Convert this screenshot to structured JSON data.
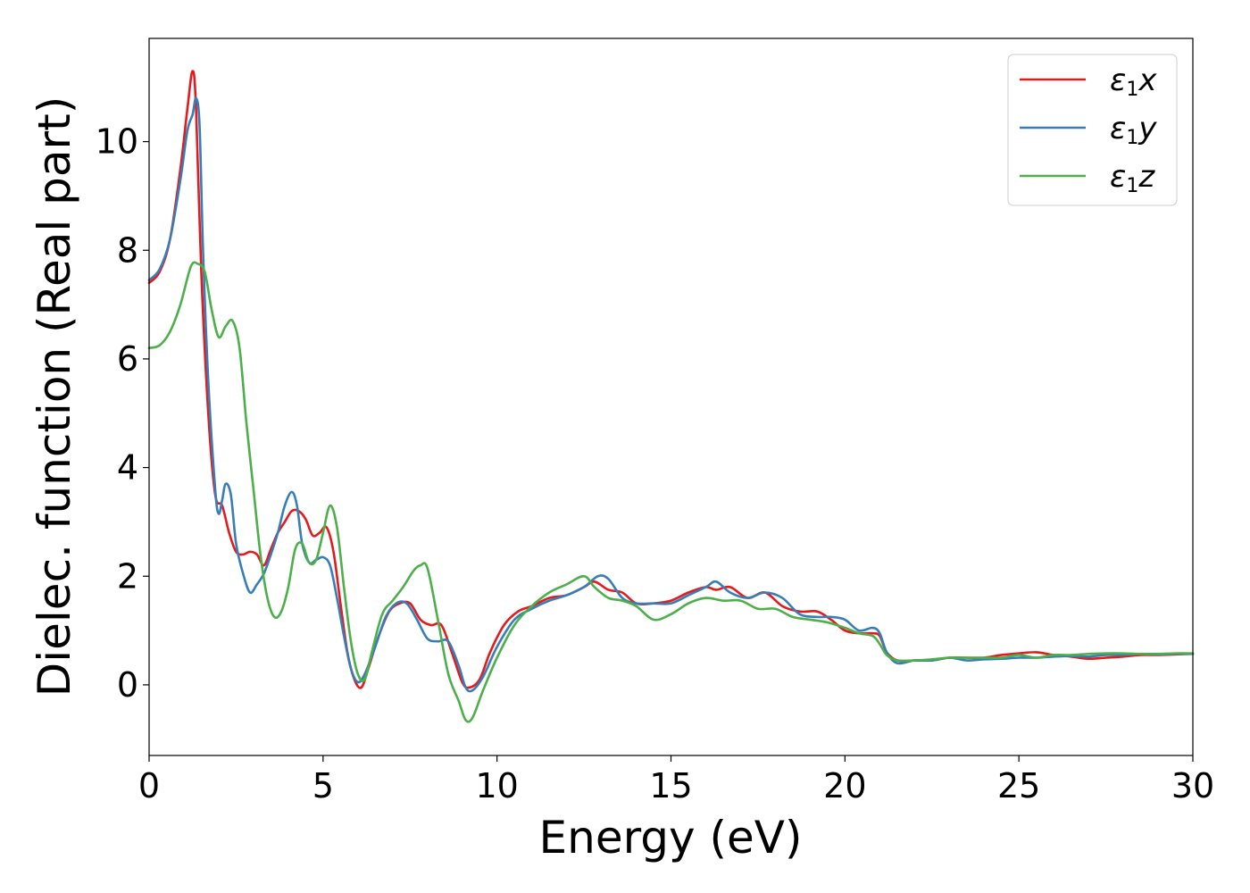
{
  "chart_data": {
    "type": "line",
    "xlabel": "Energy (eV)",
    "ylabel": "Dielec. function (Real part)",
    "xlim": [
      0,
      30
    ],
    "ylim": [
      -1.3,
      11.9
    ],
    "xticks": [
      0,
      5,
      10,
      15,
      20,
      25,
      30
    ],
    "yticks": [
      0,
      2,
      4,
      6,
      8,
      10
    ],
    "grid": false,
    "legend_position": "top-right",
    "series": [
      {
        "name": "x",
        "legend_symbol": "ε",
        "legend_subscript": "1",
        "color": "#e41a1c",
        "x": [
          0,
          0.3,
          0.6,
          0.9,
          1.1,
          1.25,
          1.35,
          1.5,
          1.7,
          1.9,
          2.1,
          2.3,
          2.5,
          2.7,
          2.9,
          3.1,
          3.3,
          3.5,
          3.7,
          3.9,
          4.1,
          4.3,
          4.5,
          4.7,
          4.9,
          5.1,
          5.3,
          5.5,
          5.7,
          5.9,
          6.1,
          6.3,
          6.6,
          6.9,
          7.2,
          7.5,
          7.8,
          8.1,
          8.4,
          8.7,
          9.0,
          9.2,
          9.5,
          9.8,
          10.2,
          10.6,
          11.0,
          11.5,
          12.0,
          12.5,
          12.8,
          13.2,
          13.6,
          14.0,
          14.5,
          15.0,
          15.5,
          16.0,
          16.3,
          16.7,
          17.2,
          17.7,
          18.2,
          18.7,
          19.2,
          19.6,
          20.0,
          20.4,
          20.8,
          21.0,
          21.2,
          21.5,
          22.0,
          22.5,
          23.0,
          23.5,
          24.0,
          24.5,
          25.0,
          25.5,
          26.0,
          26.5,
          27.0,
          27.5,
          28.0,
          28.5,
          29.0,
          29.5,
          30.0
        ],
        "y": [
          7.4,
          7.6,
          8.2,
          9.5,
          10.6,
          11.3,
          10.6,
          7.6,
          5.0,
          3.5,
          3.3,
          2.8,
          2.45,
          2.4,
          2.45,
          2.4,
          2.2,
          2.5,
          2.8,
          3.0,
          3.2,
          3.2,
          3.05,
          2.75,
          2.8,
          2.9,
          2.45,
          1.5,
          0.6,
          0.1,
          -0.05,
          0.3,
          0.9,
          1.35,
          1.5,
          1.5,
          1.2,
          1.1,
          1.1,
          0.6,
          0.05,
          -0.05,
          0.1,
          0.6,
          1.1,
          1.35,
          1.45,
          1.6,
          1.65,
          1.8,
          1.9,
          1.75,
          1.7,
          1.5,
          1.5,
          1.55,
          1.7,
          1.8,
          1.75,
          1.8,
          1.6,
          1.7,
          1.45,
          1.35,
          1.35,
          1.2,
          1.0,
          0.95,
          0.95,
          0.9,
          0.6,
          0.45,
          0.45,
          0.45,
          0.5,
          0.5,
          0.5,
          0.55,
          0.58,
          0.6,
          0.55,
          0.52,
          0.48,
          0.5,
          0.52,
          0.55,
          0.55,
          0.56,
          0.57
        ]
      },
      {
        "name": "y",
        "legend_symbol": "ε",
        "legend_subscript": "1",
        "color": "#377eb8",
        "x": [
          0,
          0.3,
          0.6,
          0.9,
          1.1,
          1.25,
          1.35,
          1.45,
          1.55,
          1.7,
          1.9,
          2.0,
          2.1,
          2.2,
          2.35,
          2.5,
          2.7,
          2.9,
          3.1,
          3.3,
          3.5,
          3.7,
          3.9,
          4.1,
          4.25,
          4.4,
          4.6,
          4.8,
          5.0,
          5.2,
          5.4,
          5.6,
          5.8,
          6.0,
          6.2,
          6.5,
          6.8,
          7.1,
          7.4,
          7.7,
          8.0,
          8.3,
          8.6,
          8.9,
          9.1,
          9.3,
          9.6,
          10.0,
          10.5,
          11.0,
          11.5,
          12.0,
          12.5,
          12.9,
          13.2,
          13.6,
          14.0,
          14.5,
          15.0,
          15.5,
          16.0,
          16.3,
          16.7,
          17.2,
          17.7,
          18.2,
          18.7,
          19.2,
          19.6,
          20.0,
          20.4,
          20.8,
          21.0,
          21.2,
          21.5,
          22.0,
          22.5,
          23.0,
          23.5,
          24.0,
          24.5,
          25.0,
          25.5,
          26.0,
          26.5,
          27.0,
          27.5,
          28.0,
          28.5,
          29.0,
          29.5,
          30.0
        ],
        "y": [
          7.45,
          7.65,
          8.2,
          9.3,
          10.2,
          10.5,
          10.8,
          10.3,
          8.0,
          5.6,
          3.6,
          3.15,
          3.4,
          3.7,
          3.5,
          2.6,
          2.05,
          1.7,
          1.85,
          2.05,
          2.4,
          2.8,
          3.3,
          3.55,
          3.3,
          2.6,
          2.25,
          2.3,
          2.35,
          2.2,
          1.6,
          0.9,
          0.3,
          0.05,
          0.2,
          0.7,
          1.25,
          1.5,
          1.5,
          1.2,
          0.85,
          0.8,
          0.8,
          0.35,
          -0.05,
          -0.1,
          0.15,
          0.7,
          1.2,
          1.4,
          1.55,
          1.65,
          1.8,
          2.0,
          1.95,
          1.6,
          1.5,
          1.5,
          1.5,
          1.65,
          1.8,
          1.9,
          1.7,
          1.6,
          1.7,
          1.6,
          1.3,
          1.25,
          1.25,
          1.2,
          1.0,
          1.05,
          0.95,
          0.6,
          0.4,
          0.45,
          0.45,
          0.5,
          0.45,
          0.47,
          0.48,
          0.5,
          0.5,
          0.52,
          0.53,
          0.52,
          0.55,
          0.55,
          0.57,
          0.56,
          0.57,
          0.57
        ]
      },
      {
        "name": "z",
        "legend_symbol": "ε",
        "legend_subscript": "1",
        "color": "#4daf4a",
        "x": [
          0,
          0.3,
          0.6,
          0.9,
          1.2,
          1.4,
          1.6,
          1.8,
          2.0,
          2.2,
          2.4,
          2.6,
          2.8,
          3.0,
          3.2,
          3.4,
          3.6,
          3.8,
          4.0,
          4.2,
          4.4,
          4.6,
          4.8,
          5.0,
          5.2,
          5.4,
          5.6,
          5.8,
          6.0,
          6.2,
          6.4,
          6.7,
          7.0,
          7.3,
          7.6,
          7.8,
          8.0,
          8.3,
          8.6,
          8.9,
          9.1,
          9.3,
          9.6,
          10.0,
          10.5,
          11.0,
          11.5,
          12.0,
          12.5,
          12.8,
          13.2,
          13.6,
          14.0,
          14.5,
          15.0,
          15.5,
          16.0,
          16.5,
          17.0,
          17.5,
          18.0,
          18.5,
          19.0,
          19.5,
          20.0,
          20.4,
          20.8,
          21.0,
          21.2,
          21.5,
          22.0,
          22.5,
          23.0,
          23.5,
          24.0,
          24.5,
          25.0,
          25.5,
          26.0,
          26.5,
          27.0,
          27.5,
          28.0,
          28.5,
          29.0,
          29.5,
          30.0
        ],
        "y": [
          6.2,
          6.25,
          6.5,
          7.0,
          7.7,
          7.75,
          7.6,
          6.9,
          6.4,
          6.6,
          6.7,
          6.2,
          4.8,
          3.6,
          2.4,
          1.6,
          1.25,
          1.35,
          1.8,
          2.5,
          2.6,
          2.25,
          2.3,
          2.8,
          3.3,
          2.9,
          1.8,
          0.8,
          0.2,
          0.1,
          0.6,
          1.3,
          1.55,
          1.8,
          2.1,
          2.2,
          2.15,
          1.2,
          0.2,
          -0.3,
          -0.65,
          -0.6,
          -0.1,
          0.5,
          1.1,
          1.45,
          1.7,
          1.85,
          2.0,
          1.8,
          1.6,
          1.55,
          1.45,
          1.2,
          1.3,
          1.5,
          1.6,
          1.55,
          1.55,
          1.4,
          1.4,
          1.25,
          1.2,
          1.15,
          1.05,
          0.95,
          0.9,
          0.75,
          0.55,
          0.45,
          0.45,
          0.47,
          0.5,
          0.5,
          0.5,
          0.5,
          0.55,
          0.5,
          0.55,
          0.55,
          0.57,
          0.58,
          0.58,
          0.57,
          0.57,
          0.58,
          0.58
        ]
      }
    ]
  }
}
